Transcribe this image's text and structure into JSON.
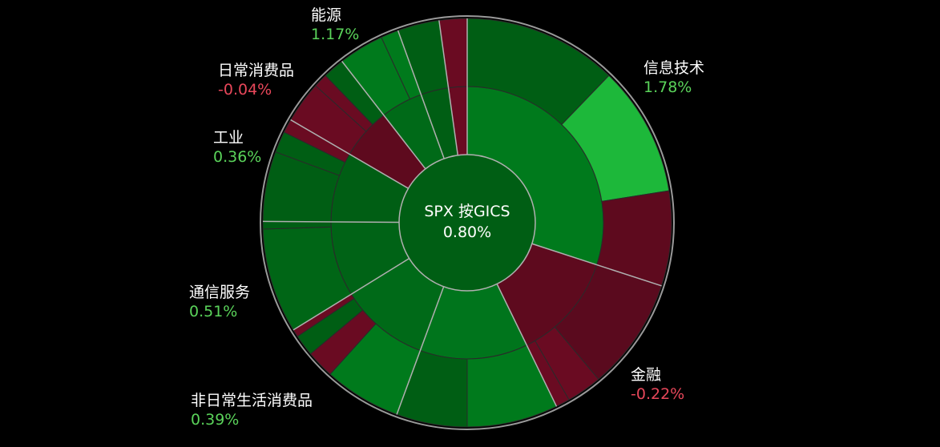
{
  "chart_data": {
    "type": "sunburst",
    "center_label": "SPX 按GICS",
    "center_value": 0.8,
    "center_value_label": "0.80%",
    "center_color": "#005e14",
    "positive_color": "#5ad35a",
    "negative_color": "#e8475a",
    "sectors": [
      {
        "name": "信息技术",
        "change": 1.78,
        "value_label": "1.78%",
        "weight": 30,
        "color": "#007a1c",
        "children": [
          {
            "weight": 12.2,
            "color": "#005e14"
          },
          {
            "weight": 10.3,
            "color": "#1db83a"
          },
          {
            "weight": 7.5,
            "color": "#5e0a1e"
          }
        ]
      },
      {
        "name": "金融",
        "change": -0.22,
        "value_label": "-0.22%",
        "weight": 12.8,
        "color": "#5e0a1e",
        "children": [
          {
            "weight": 8.9,
            "color": "#5a0a1e"
          },
          {
            "weight": 2.8,
            "color": "#6a0b22"
          },
          {
            "weight": 1.1,
            "color": "#6a0b22"
          }
        ]
      },
      {
        "name": null,
        "change": null,
        "value_label": null,
        "weight": 12.8,
        "color": "#00751c",
        "children": [
          {
            "weight": 7.2,
            "color": "#007a1c"
          },
          {
            "weight": 5.6,
            "color": "#005e14"
          }
        ]
      },
      {
        "name": "非日常生活消费品",
        "change": 0.39,
        "value_label": "0.39%",
        "weight": 10.6,
        "color": "#006a18",
        "children": [
          {
            "weight": 6.1,
            "color": "#007a1c"
          },
          {
            "weight": 2.2,
            "color": "#6a0b22"
          },
          {
            "weight": 1.7,
            "color": "#005e14"
          },
          {
            "weight": 0.6,
            "color": "#6a0b22"
          }
        ]
      },
      {
        "name": "通信服务",
        "change": 0.51,
        "value_label": "0.51%",
        "weight": 8.9,
        "color": "#006316",
        "children": [
          {
            "weight": 8.3,
            "color": "#006616"
          },
          {
            "weight": 0.6,
            "color": "#005e14"
          }
        ]
      },
      {
        "name": "工业",
        "change": 0.36,
        "value_label": "0.36%",
        "weight": 8.3,
        "color": "#005e14",
        "children": [
          {
            "weight": 5.6,
            "color": "#005e14"
          },
          {
            "weight": 1.7,
            "color": "#005e14"
          },
          {
            "weight": 1.1,
            "color": "#6a0b22"
          }
        ]
      },
      {
        "name": "日常消费品",
        "change": -0.04,
        "value_label": "-0.04%",
        "weight": 6.1,
        "color": "#5e0a1e",
        "children": [
          {
            "weight": 3.3,
            "color": "#6a0b22"
          },
          {
            "weight": 1.1,
            "color": "#6a0b22"
          },
          {
            "weight": 1.7,
            "color": "#005e14"
          }
        ]
      },
      {
        "name": "能源",
        "change": 1.17,
        "value_label": "1.17%",
        "weight": 5,
        "color": "#006a18",
        "children": [
          {
            "weight": 3.6,
            "color": "#007a1c"
          },
          {
            "weight": 1.4,
            "color": "#007a1c"
          }
        ]
      },
      {
        "name": null,
        "change": null,
        "value_label": null,
        "weight": 3.3,
        "color": "#005e14",
        "children": [
          {
            "weight": 3.3,
            "color": "#005e14"
          }
        ]
      },
      {
        "name": null,
        "change": null,
        "value_label": null,
        "weight": 2.2,
        "color": "#6a0b22",
        "children": [
          {
            "weight": 2.2,
            "color": "#6a0b22"
          }
        ]
      }
    ]
  }
}
